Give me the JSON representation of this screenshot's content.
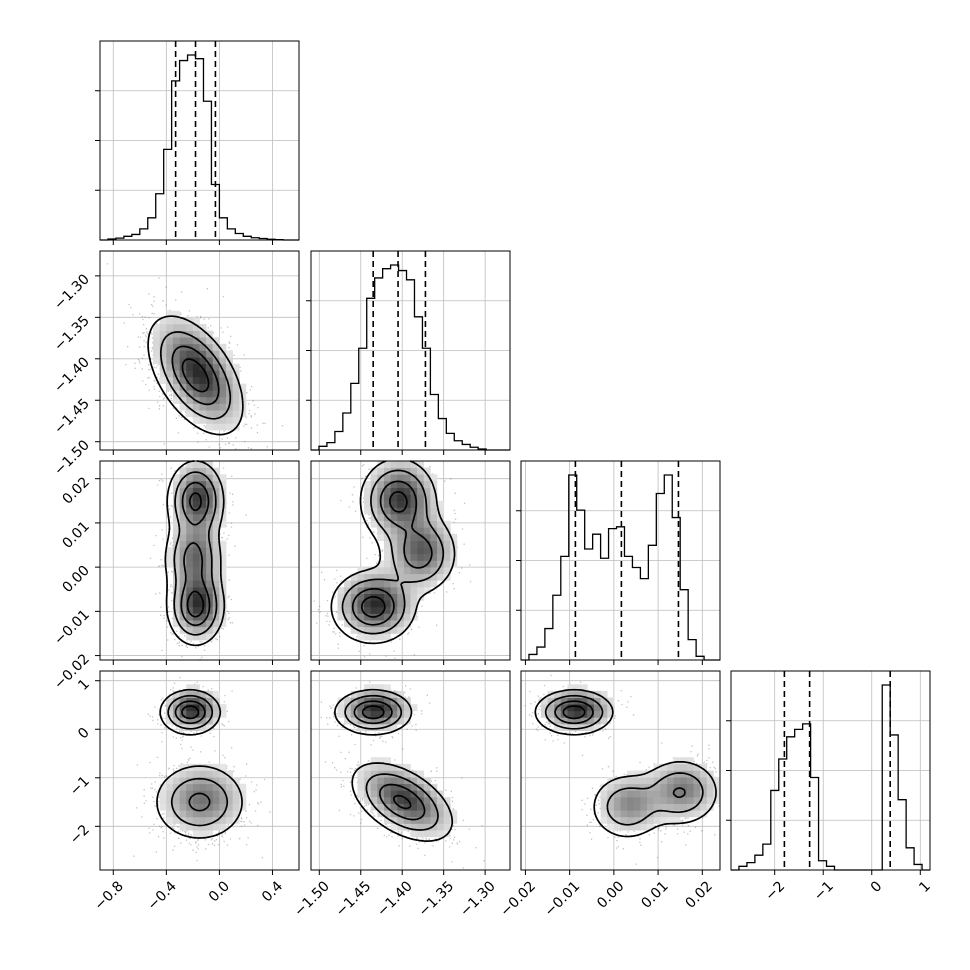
{
  "chart_data": {
    "type": "corner",
    "parameters": [
      {
        "range": [
          -0.9,
          0.6
        ],
        "ticks": [
          -0.8,
          -0.4,
          0.0,
          0.4
        ],
        "tick_labels": [
          "−0.8",
          "−0.4",
          "0.0",
          "0.4"
        ],
        "quantiles": [
          -0.33,
          -0.18,
          -0.03
        ]
      },
      {
        "range": [
          -1.51,
          -1.27
        ],
        "ticks": [
          -1.5,
          -1.45,
          -1.4,
          -1.35,
          -1.3
        ],
        "tick_labels": [
          "−1.50",
          "−1.45",
          "−1.40",
          "−1.35",
          "−1.30"
        ],
        "quantiles": [
          -1.435,
          -1.405,
          -1.372
        ]
      },
      {
        "range": [
          -0.021,
          0.024
        ],
        "ticks": [
          -0.02,
          -0.01,
          0.0,
          0.01,
          0.02
        ],
        "tick_labels": [
          "−0.02",
          "−0.01",
          "0.00",
          "0.01",
          "0.02"
        ],
        "quantiles": [
          -0.0087,
          0.0017,
          0.0146
        ]
      },
      {
        "range": [
          -2.9,
          1.2
        ],
        "ticks": [
          -2,
          -1,
          0,
          1
        ],
        "tick_labels": [
          "−2",
          "−1",
          "0",
          "1"
        ],
        "quantiles": [
          -1.8,
          -1.28,
          0.38
        ]
      }
    ],
    "histograms": [
      {
        "param": 0,
        "bin_edges": [
          -0.9,
          -0.84,
          -0.78,
          -0.72,
          -0.66,
          -0.6,
          -0.54,
          -0.48,
          -0.42,
          -0.36,
          -0.3,
          -0.24,
          -0.18,
          -0.12,
          -0.06,
          0.0,
          0.06,
          0.12,
          0.18,
          0.24,
          0.3,
          0.36,
          0.42,
          0.48,
          0.54,
          0.6
        ],
        "counts": [
          0.0,
          0.005,
          0.01,
          0.02,
          0.03,
          0.06,
          0.12,
          0.25,
          0.49,
          0.86,
          0.97,
          1.0,
          0.98,
          0.75,
          0.3,
          0.12,
          0.06,
          0.035,
          0.02,
          0.012,
          0.008,
          0.004,
          0.002,
          0.0,
          0.0
        ]
      },
      {
        "param": 1,
        "bin_edges": [
          -1.51,
          -1.5004,
          -1.4908,
          -1.4812,
          -1.4716,
          -1.462,
          -1.4524,
          -1.4428,
          -1.4332,
          -1.4236,
          -1.414,
          -1.4044,
          -1.3948,
          -1.3852,
          -1.3756,
          -1.366,
          -1.3564,
          -1.3468,
          -1.3372,
          -1.3276,
          -1.318,
          -1.3084,
          -1.2988,
          -1.2892,
          -1.2796,
          -1.27
        ],
        "counts": [
          0.0,
          0.02,
          0.04,
          0.1,
          0.2,
          0.36,
          0.55,
          0.82,
          0.93,
          0.98,
          1.0,
          0.97,
          0.92,
          0.72,
          0.55,
          0.3,
          0.17,
          0.09,
          0.05,
          0.03,
          0.015,
          0.005,
          0.0,
          0.0,
          0.0
        ]
      },
      {
        "param": 2,
        "bin_edges": [
          -0.021,
          -0.0192,
          -0.0174,
          -0.0156,
          -0.0138,
          -0.012,
          -0.0102,
          -0.0084,
          -0.0066,
          -0.0048,
          -0.003,
          -0.0012,
          0.0006,
          0.0024,
          0.0042,
          0.006,
          0.0078,
          0.0096,
          0.0114,
          0.0132,
          0.015,
          0.0168,
          0.0186,
          0.0204,
          0.0222,
          0.024
        ],
        "counts": [
          0.0,
          0.03,
          0.07,
          0.17,
          0.35,
          0.56,
          1.0,
          0.81,
          0.6,
          0.68,
          0.55,
          0.71,
          0.72,
          0.56,
          0.5,
          0.44,
          0.62,
          0.9,
          1.0,
          0.77,
          0.38,
          0.11,
          0.02,
          0.0,
          0.0
        ]
      },
      {
        "param": 3,
        "bin_edges": [
          -2.9,
          -2.736,
          -2.572,
          -2.408,
          -2.244,
          -2.08,
          -1.916,
          -1.752,
          -1.588,
          -1.424,
          -1.26,
          -1.096,
          -0.932,
          -0.768,
          -0.604,
          -0.44,
          -0.276,
          -0.112,
          0.052,
          0.216,
          0.38,
          0.544,
          0.708,
          0.872,
          1.036,
          1.2
        ],
        "counts": [
          0.0,
          0.02,
          0.04,
          0.08,
          0.14,
          0.43,
          0.6,
          0.72,
          0.76,
          0.79,
          0.5,
          0.05,
          0.02,
          0.0,
          0.0,
          0.0,
          0.0,
          0.0,
          0.0,
          1.0,
          0.73,
          0.38,
          0.12,
          0.03,
          0.0
        ]
      }
    ],
    "panels_2d": [
      {
        "x_param": 0,
        "y_param": 1,
        "modes": [
          {
            "mean": [
              -0.18,
              -1.42
            ],
            "cov": [
              [
                0.03,
                -0.0031
              ],
              [
                -0.0031,
                0.0012
              ]
            ],
            "weight": 1.0
          }
        ]
      },
      {
        "x_param": 0,
        "y_param": 2,
        "modes": [
          {
            "mean": [
              -0.18,
              0.015
            ],
            "cov": [
              [
                0.011,
                0.0
              ],
              [
                0.0,
                2e-05
              ]
            ],
            "weight": 0.36
          },
          {
            "mean": [
              -0.2,
              0.002
            ],
            "cov": [
              [
                0.012,
                0.0
              ],
              [
                0.0,
                2e-05
              ]
            ],
            "weight": 0.28
          },
          {
            "mean": [
              -0.18,
              -0.009
            ],
            "cov": [
              [
                0.011,
                0.0
              ],
              [
                0.0,
                1.8e-05
              ]
            ],
            "weight": 0.36
          }
        ]
      },
      {
        "x_param": 1,
        "y_param": 2,
        "modes": [
          {
            "mean": [
              -1.405,
              0.015
            ],
            "cov": [
              [
                0.0005,
                0.0
              ],
              [
                0.0,
                2.2e-05
              ]
            ],
            "weight": 0.36
          },
          {
            "mean": [
              -1.38,
              0.003
            ],
            "cov": [
              [
                0.0005,
                0.0
              ],
              [
                0.0,
                2e-05
              ]
            ],
            "weight": 0.28
          },
          {
            "mean": [
              -1.435,
              -0.009
            ],
            "cov": [
              [
                0.0006,
                0.0
              ],
              [
                0.0,
                1.6e-05
              ]
            ],
            "weight": 0.36
          }
        ]
      },
      {
        "x_param": 0,
        "y_param": 3,
        "modes": [
          {
            "mean": [
              -0.22,
              0.35
            ],
            "cov": [
              [
                0.012,
                0.0
              ],
              [
                0.0,
                0.05
              ]
            ],
            "weight": 0.35
          },
          {
            "mean": [
              -0.15,
              -1.5
            ],
            "cov": [
              [
                0.03,
                0.0
              ],
              [
                0.0,
                0.16
              ]
            ],
            "weight": 0.65
          }
        ]
      },
      {
        "x_param": 1,
        "y_param": 3,
        "modes": [
          {
            "mean": [
              -1.435,
              0.35
            ],
            "cov": [
              [
                0.0005,
                0.0
              ],
              [
                0.0,
                0.05
              ]
            ],
            "weight": 0.35
          },
          {
            "mean": [
              -1.4,
              -1.5
            ],
            "cov": [
              [
                0.0009,
                -0.006
              ],
              [
                -0.006,
                0.16
              ]
            ],
            "weight": 0.65
          }
        ]
      },
      {
        "x_param": 2,
        "y_param": 3,
        "modes": [
          {
            "mean": [
              -0.009,
              0.35
            ],
            "cov": [
              [
                1.8e-05,
                0.0
              ],
              [
                0.0,
                0.05
              ]
            ],
            "weight": 0.35
          },
          {
            "mean": [
              0.003,
              -1.6
            ],
            "cov": [
              [
                1.8e-05,
                0.0
              ],
              [
                0.0,
                0.12
              ]
            ],
            "weight": 0.3
          },
          {
            "mean": [
              0.015,
              -1.3
            ],
            "cov": [
              [
                2e-05,
                0.0
              ],
              [
                0.0,
                0.12
              ]
            ],
            "weight": 0.35
          }
        ]
      }
    ],
    "grid": true,
    "xlabel": "",
    "ylabel": "",
    "title": ""
  }
}
